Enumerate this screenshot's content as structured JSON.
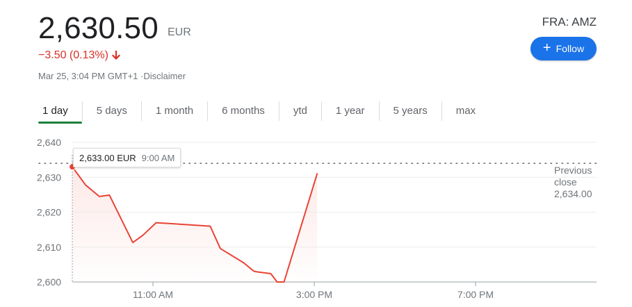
{
  "quote": {
    "price": "2,630.50",
    "currency": "EUR",
    "change": "−3.50 (0.13%)",
    "timestamp": "Mar 25, 3:04 PM GMT+1",
    "disclaimer": "·Disclaimer",
    "ticker": "FRA: AMZ",
    "follow_label": "Follow",
    "change_color": "#d93025"
  },
  "tabs": [
    {
      "label": "1 day",
      "active": true
    },
    {
      "label": "5 days"
    },
    {
      "label": "1 month"
    },
    {
      "label": "6 months"
    },
    {
      "label": "ytd"
    },
    {
      "label": "1 year"
    },
    {
      "label": "5 years"
    },
    {
      "label": "max"
    }
  ],
  "tooltip": {
    "value": "2,633.00 EUR",
    "time": "9:00 AM"
  },
  "previous_close": {
    "line1": "Previous",
    "line2": "close",
    "value": "2,634.00"
  },
  "chart_data": {
    "type": "line",
    "x_unit": "hours",
    "x_range": [
      9,
      22
    ],
    "y_range": [
      2600,
      2640
    ],
    "y_ticks": [
      2640,
      2630,
      2620,
      2610,
      2600
    ],
    "y_tick_labels": [
      "2,640",
      "2,630",
      "2,620",
      "2,610",
      "2,600"
    ],
    "x_ticks": [
      11,
      15,
      19
    ],
    "x_tick_labels": [
      "11:00 AM",
      "3:00 PM",
      "7:00 PM"
    ],
    "reference_line": 2634,
    "line_color": "#ea4335",
    "series": [
      {
        "x": [
          9.0,
          9.33,
          9.67,
          9.92,
          10.5,
          10.75,
          11.08,
          12.42,
          12.67,
          13.25,
          13.5,
          13.58,
          13.92,
          14.08,
          14.25,
          15.07
        ],
        "y": [
          2633.0,
          2627.8,
          2624.5,
          2624.9,
          2611.3,
          2613.4,
          2617.0,
          2616.0,
          2609.6,
          2605.5,
          2603.1,
          2602.9,
          2602.4,
          2600.0,
          2600.0,
          2631.0
        ]
      }
    ]
  }
}
